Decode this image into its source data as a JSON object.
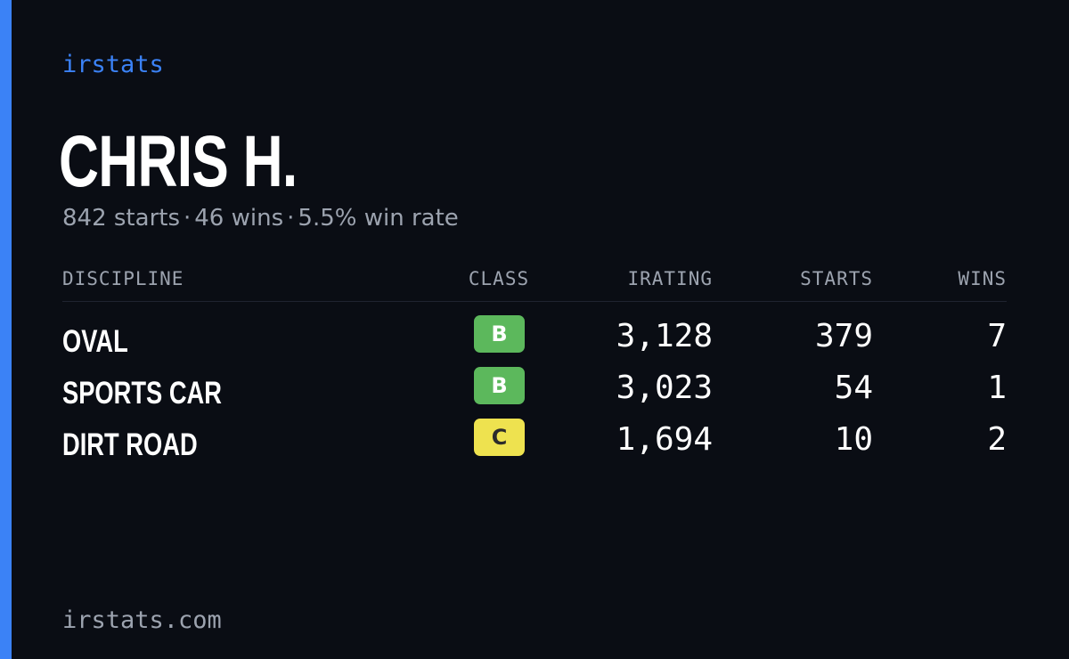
{
  "brand": "irstats",
  "player": {
    "name": "CHRIS H.",
    "starts_text": "842 starts",
    "wins_text": "46 wins",
    "win_rate_text": "5.5% win rate",
    "separator": "·"
  },
  "table": {
    "headers": {
      "discipline": "DISCIPLINE",
      "class": "CLASS",
      "irating": "IRATING",
      "starts": "STARTS",
      "wins": "WINS"
    },
    "rows": [
      {
        "discipline": "OVAL",
        "class": "B",
        "class_bg": "#5cb85c",
        "class_fg": "#ffffff",
        "irating": "3,128",
        "starts": "379",
        "wins": "7"
      },
      {
        "discipline": "SPORTS CAR",
        "class": "B",
        "class_bg": "#5cb85c",
        "class_fg": "#ffffff",
        "irating": "3,023",
        "starts": "54",
        "wins": "1"
      },
      {
        "discipline": "DIRT ROAD",
        "class": "C",
        "class_bg": "#eee24f",
        "class_fg": "#2b2b2b",
        "irating": "1,694",
        "starts": "10",
        "wins": "2"
      }
    ]
  },
  "footer": "irstats.com",
  "colors": {
    "accent": "#3b82f6",
    "background": "#0a0d14",
    "muted_text": "#9ca3af"
  }
}
